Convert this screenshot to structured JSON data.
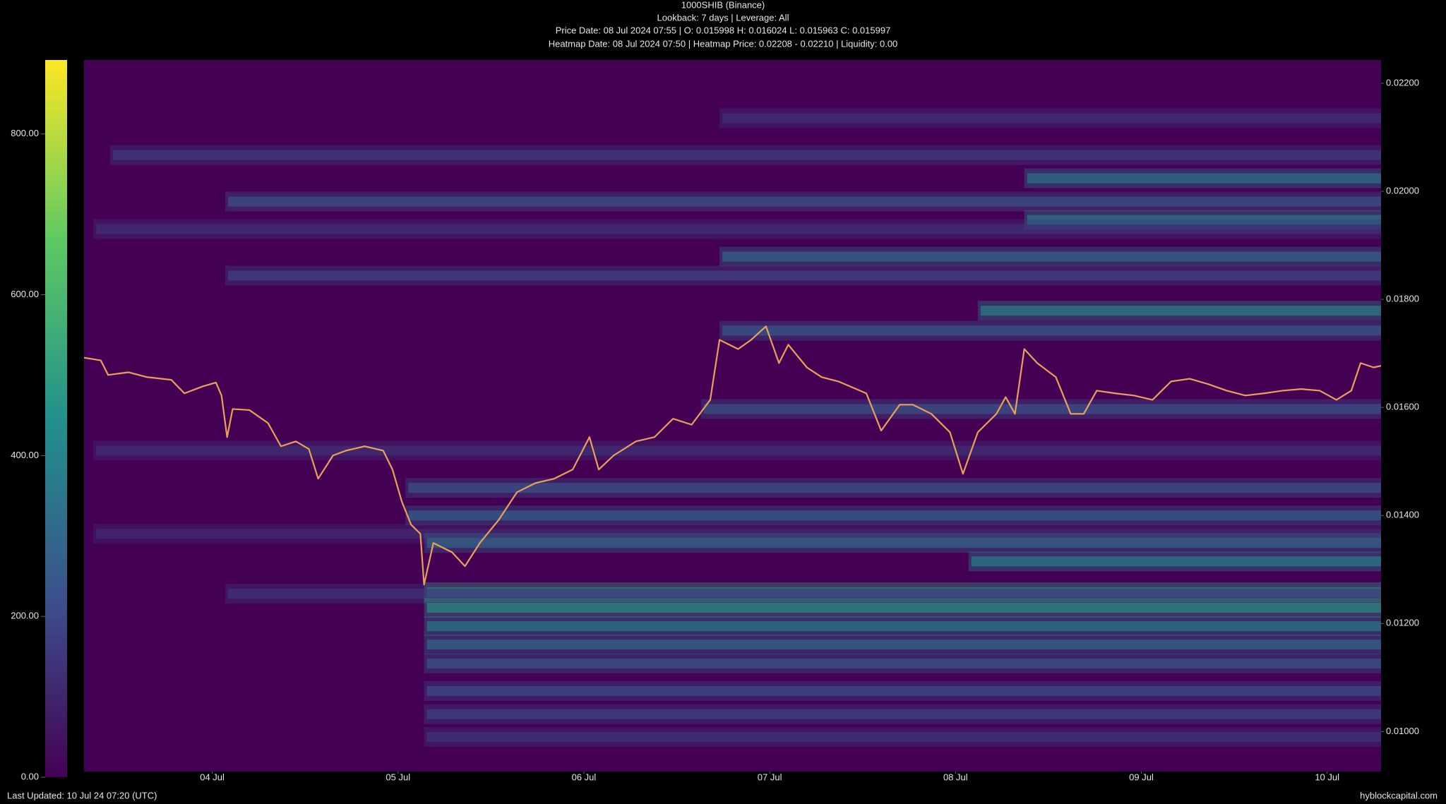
{
  "chart_data": {
    "type": "heatmap",
    "title": "1000SHIB (Binance)",
    "subtitle": "Lookback: 7 days | Leverage: All",
    "price_info": "Price Date: 08 Jul 2024 07:55 | O: 0.015998 H: 0.016024 L: 0.015963 C: 0.015997",
    "heatmap_info": "Heatmap Date: 08 Jul 2024 07:50 | Heatmap Price: 0.02208 - 0.02210 | Liquidity: 0.00",
    "footer_left": "Last Updated: 10 Jul 24 07:20 (UTC)",
    "footer_right": "hyblockcapital.com",
    "xlim": [
      3.31,
      10.29
    ],
    "xticks": [
      {
        "value": 4,
        "label": "04 Jul"
      },
      {
        "value": 5,
        "label": "05 Jul"
      },
      {
        "value": 6,
        "label": "06 Jul"
      },
      {
        "value": 7,
        "label": "07 Jul"
      },
      {
        "value": 8,
        "label": "08 Jul"
      },
      {
        "value": 9,
        "label": "09 Jul"
      },
      {
        "value": 10,
        "label": "10 Jul"
      }
    ],
    "ylim": [
      0.00926,
      0.02243
    ],
    "yticks": [
      {
        "value": 0.01,
        "label": "0.01000"
      },
      {
        "value": 0.012,
        "label": "0.01200"
      },
      {
        "value": 0.014,
        "label": "0.01400"
      },
      {
        "value": 0.016,
        "label": "0.01600"
      },
      {
        "value": 0.018,
        "label": "0.01800"
      },
      {
        "value": 0.02,
        "label": "0.02000"
      },
      {
        "value": 0.022,
        "label": "0.02200"
      }
    ],
    "clim": [
      0,
      892
    ],
    "cticks": [
      {
        "value": 0,
        "label": "0.00"
      },
      {
        "value": 200,
        "label": "200.00"
      },
      {
        "value": 400,
        "label": "400.00"
      },
      {
        "value": 600,
        "label": "600.00"
      },
      {
        "value": 800,
        "label": "800.00"
      }
    ],
    "colorscale": [
      "#440154",
      "#3b528b",
      "#21918c",
      "#5ec962",
      "#fde725"
    ],
    "bands": [
      {
        "price": 0.02135,
        "start": 6.73,
        "liquidity": 150
      },
      {
        "price": 0.02067,
        "start": 3.45,
        "liquidity": 180
      },
      {
        "price": 0.02024,
        "start": 8.37,
        "liquidity": 380
      },
      {
        "price": 0.01981,
        "start": 4.07,
        "liquidity": 250
      },
      {
        "price": 0.01947,
        "start": 8.37,
        "liquidity": 400
      },
      {
        "price": 0.0193,
        "start": 3.36,
        "liquidity": 150
      },
      {
        "price": 0.01879,
        "start": 6.73,
        "liquidity": 330
      },
      {
        "price": 0.01844,
        "start": 4.07,
        "liquidity": 200
      },
      {
        "price": 0.01779,
        "start": 8.12,
        "liquidity": 420
      },
      {
        "price": 0.01742,
        "start": 6.73,
        "liquidity": 280
      },
      {
        "price": 0.01597,
        "start": 6.63,
        "liquidity": 250
      },
      {
        "price": 0.0152,
        "start": 3.36,
        "liquidity": 140
      },
      {
        "price": 0.01451,
        "start": 5.04,
        "liquidity": 260
      },
      {
        "price": 0.014,
        "start": 5.04,
        "liquidity": 300
      },
      {
        "price": 0.01366,
        "start": 3.36,
        "liquidity": 130
      },
      {
        "price": 0.01349,
        "start": 5.14,
        "liquidity": 320
      },
      {
        "price": 0.01315,
        "start": 8.07,
        "liquidity": 420
      },
      {
        "price": 0.01258,
        "start": 5.14,
        "liquidity": 520
      },
      {
        "price": 0.01255,
        "start": 4.07,
        "liquidity": 160
      },
      {
        "price": 0.01229,
        "start": 5.14,
        "liquidity": 480
      },
      {
        "price": 0.01195,
        "start": 5.14,
        "liquidity": 400
      },
      {
        "price": 0.01161,
        "start": 5.14,
        "liquidity": 330
      },
      {
        "price": 0.01126,
        "start": 5.14,
        "liquidity": 270
      },
      {
        "price": 0.01075,
        "start": 5.14,
        "liquidity": 230
      },
      {
        "price": 0.01032,
        "start": 5.14,
        "liquidity": 200
      },
      {
        "price": 0.0099,
        "start": 5.14,
        "liquidity": 160
      }
    ],
    "series": [
      {
        "name": "1000SHIB",
        "color": "#e9a15a",
        "x": [
          3.31,
          3.4,
          3.44,
          3.55,
          3.65,
          3.78,
          3.85,
          3.95,
          4.02,
          4.05,
          4.08,
          4.11,
          4.2,
          4.3,
          4.37,
          4.45,
          4.52,
          4.57,
          4.65,
          4.72,
          4.82,
          4.92,
          4.97,
          5.02,
          5.07,
          5.12,
          5.14,
          5.19,
          5.29,
          5.36,
          5.44,
          5.54,
          5.64,
          5.74,
          5.84,
          5.94,
          6.03,
          6.08,
          6.16,
          6.28,
          6.38,
          6.48,
          6.58,
          6.68,
          6.73,
          6.83,
          6.9,
          6.98,
          7.05,
          7.1,
          7.2,
          7.28,
          7.37,
          7.52,
          7.6,
          7.7,
          7.77,
          7.87,
          7.97,
          8.04,
          8.12,
          8.22,
          8.27,
          8.32,
          8.37,
          8.44,
          8.54,
          8.62,
          8.69,
          8.76,
          8.86,
          8.96,
          9.06,
          9.16,
          9.26,
          9.36,
          9.46,
          9.56,
          9.66,
          9.76,
          9.86,
          9.96,
          10.05,
          10.13,
          10.18,
          10.25,
          10.29
        ],
        "values": [
          0.01692,
          0.01687,
          0.0166,
          0.01665,
          0.01656,
          0.01651,
          0.01626,
          0.01639,
          0.01646,
          0.01622,
          0.01545,
          0.01597,
          0.01595,
          0.01571,
          0.01528,
          0.01537,
          0.01523,
          0.01468,
          0.01511,
          0.0152,
          0.01528,
          0.0152,
          0.01485,
          0.01426,
          0.01383,
          0.01366,
          0.01272,
          0.01349,
          0.01332,
          0.01306,
          0.01349,
          0.01391,
          0.01443,
          0.0146,
          0.01468,
          0.01485,
          0.01545,
          0.01485,
          0.01511,
          0.01537,
          0.01545,
          0.01579,
          0.01568,
          0.01614,
          0.01725,
          0.01708,
          0.01725,
          0.0175,
          0.01682,
          0.01716,
          0.01674,
          0.01656,
          0.01648,
          0.01626,
          0.01557,
          0.01605,
          0.01605,
          0.01588,
          0.01554,
          0.01477,
          0.01554,
          0.01588,
          0.01619,
          0.01588,
          0.01708,
          0.01682,
          0.01656,
          0.01588,
          0.01588,
          0.01631,
          0.01626,
          0.01622,
          0.01614,
          0.01648,
          0.01653,
          0.01643,
          0.01631,
          0.01622,
          0.01626,
          0.01631,
          0.01634,
          0.01631,
          0.01614,
          0.01631,
          0.01682,
          0.01674,
          0.01677
        ]
      }
    ]
  }
}
